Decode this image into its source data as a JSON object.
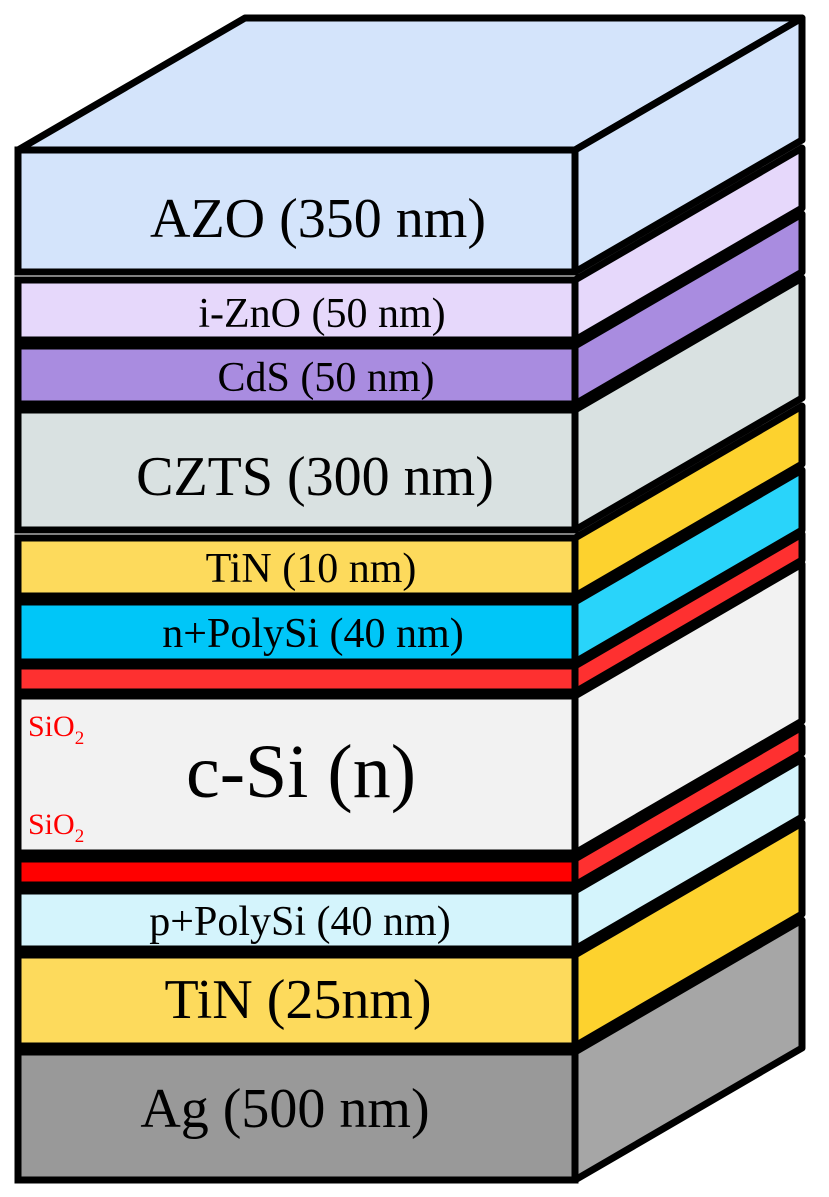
{
  "diagram": {
    "type": "layer-stack",
    "layers": [
      {
        "id": "azo",
        "label": "AZO (350 nm)",
        "color": "#d4e4fb",
        "side_color": "#d4e4fb"
      },
      {
        "id": "izno",
        "label": "i-ZnO (50 nm)",
        "color": "#e6d8fb",
        "side_color": "#e6d8fb"
      },
      {
        "id": "cds",
        "label": "CdS (50 nm)",
        "color": "#a98ce0",
        "side_color": "#a98ce0"
      },
      {
        "id": "czts",
        "label": "CZTS (300 nm)",
        "color": "#d9e1e1",
        "side_color": "#d9e1e1"
      },
      {
        "id": "tin-top",
        "label": "TiN (10 nm)",
        "color": "#fdda5c",
        "side_color": "#fdd22e"
      },
      {
        "id": "n-polysi",
        "label": "n+PolySi (40 nm)",
        "color": "#00c6f8",
        "side_color": "#29d4fa"
      },
      {
        "id": "sio2-top",
        "label": "",
        "color": "#fe3030",
        "side_color": "#fe3030"
      },
      {
        "id": "c-si",
        "label": "c-Si (n)",
        "color": "#f2f2f2",
        "side_color": "#f2f2f2"
      },
      {
        "id": "sio2-bottom",
        "label": "",
        "color": "#ff0000",
        "side_color": "#fe3030"
      },
      {
        "id": "p-polysi",
        "label": "p+PolySi (40 nm)",
        "color": "#d4f4fc",
        "side_color": "#d4f4fc"
      },
      {
        "id": "tin-bottom",
        "label": "TiN (25nm)",
        "color": "#fdda5c",
        "side_color": "#fdd22e"
      },
      {
        "id": "ag",
        "label": "Ag (500 nm)",
        "color": "#999999",
        "side_color": "#a6a6a6"
      }
    ],
    "top_face_color": "#d4e4fb",
    "annotations": [
      {
        "id": "sio2-top-label",
        "main": "SiO",
        "sub": "2",
        "color": "#ff0000"
      },
      {
        "id": "sio2-bottom-label",
        "main": "SiO",
        "sub": "2",
        "color": "#ff0000"
      }
    ]
  }
}
